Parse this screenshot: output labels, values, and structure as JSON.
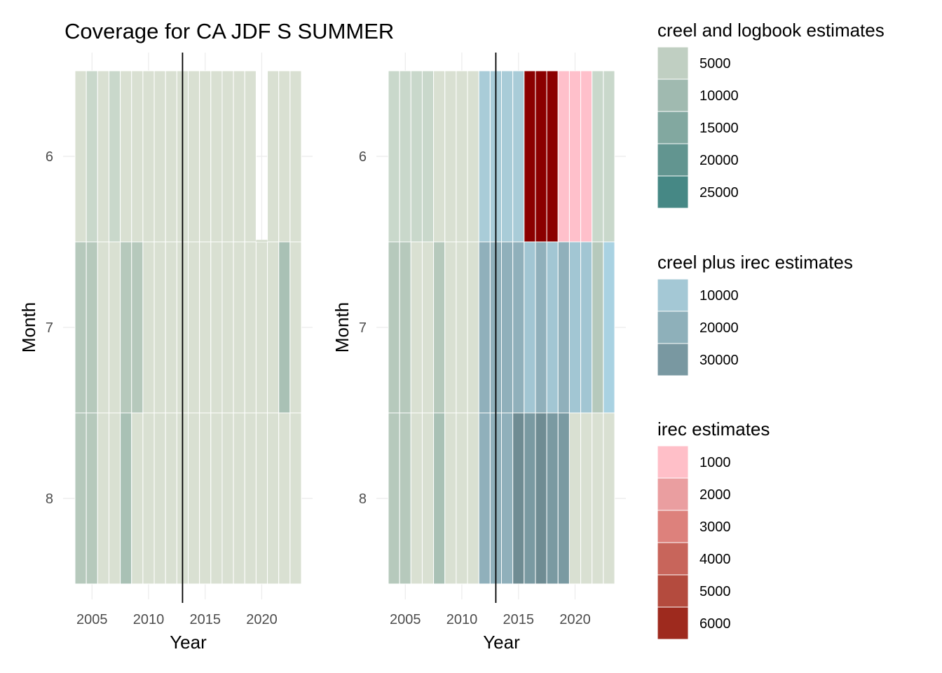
{
  "chart_data": {
    "type": "heatmap",
    "title": "Coverage for CA JDF S SUMMER",
    "vline_year": 2013,
    "months": [
      6,
      7,
      8
    ],
    "x_ticks": [
      2005,
      2010,
      2015,
      2020
    ],
    "xlim": [
      2004.5,
      2023.5
    ],
    "panels": [
      {
        "xlabel": "Year",
        "ylabel": "Month",
        "years": [
          2004,
          2005,
          2006,
          2007,
          2008,
          2009,
          2010,
          2011,
          2012,
          2013,
          2014,
          2015,
          2016,
          2017,
          2018,
          2019,
          2020,
          2021,
          2022,
          2023
        ],
        "cells": {
          "6": [
            "#d9e0d2",
            "#c9d8cb",
            "#d9e0d2",
            "#c9d8cb",
            "#d9e0d2",
            "#d9e0d2",
            "#d9e0d2",
            "#d9e0d2",
            "#d9e0d2",
            "#d9e0d2",
            "#d9e0d2",
            "#d9e0d2",
            "#d9e0d2",
            "#d9e0d2",
            "#d9e0d2",
            "#d9e0d2",
            null,
            "#d9e0d2",
            "#d9e0d2",
            "#d9e0d2"
          ],
          "7": [
            "#b6c9bc",
            "#b6c9bc",
            "#d9e0d2",
            "#d9e0d2",
            "#b6c9bc",
            "#b6c9bc",
            "#d9e0d2",
            "#d9e0d2",
            "#d9e0d2",
            "#d9e0d2",
            "#d9e0d2",
            "#d9e0d2",
            "#d9e0d2",
            "#d9e0d2",
            "#d9e0d2",
            "#d9e0d2",
            "#d9e0d2",
            "#d9e0d2",
            "#a9c1b5",
            "#d9e0d2"
          ],
          "8": [
            "#b6c9bc",
            "#b6c9bc",
            "#d9e0d2",
            "#d9e0d2",
            "#a9c1b5",
            "#d9e0d2",
            "#d9e0d2",
            "#d9e0d2",
            "#d9e0d2",
            "#d9e0d2",
            "#d9e0d2",
            "#d9e0d2",
            "#d9e0d2",
            "#d9e0d2",
            "#d9e0d2",
            "#d9e0d2",
            "#d9e0d2",
            "#d9e0d2",
            "#d9e0d2",
            "#d9e0d2"
          ]
        },
        "partial_2020_month6": true
      },
      {
        "xlabel": "Year",
        "ylabel": "Month",
        "years": [
          2004,
          2005,
          2006,
          2007,
          2008,
          2009,
          2010,
          2011,
          2012,
          2013,
          2014,
          2015,
          2016,
          2017,
          2018,
          2019,
          2020,
          2021,
          2022,
          2023
        ],
        "cells": {
          "6": [
            "#c9d8cb",
            "#c9d8cb",
            "#c9d8cb",
            "#c9d8cb",
            "#d9e0d2",
            "#d9e0d2",
            "#d9e0d2",
            "#d9e0d2",
            "#a9ccd8",
            "#a9ccd8",
            "#a9ccd8",
            "#a9ccd8",
            "#8b0000",
            "#8b0000",
            "#8b0000",
            "#ffc0cb",
            "#ffc0cb",
            "#ffc0cb",
            "#c9d8cb",
            "#c9d8cb"
          ],
          "7": [
            "#b6c9bc",
            "#b6c9bc",
            "#d9e0d2",
            "#d9e0d2",
            "#b6c9bc",
            "#d9e0d2",
            "#d9e0d2",
            "#d9e0d2",
            "#90b0bb",
            "#90b0bb",
            "#90b0bb",
            "#90b0bb",
            "#a2c6d3",
            "#90b0bb",
            "#a2c6d3",
            "#90b0bb",
            "#a2c6d3",
            "#a2c6d3",
            "#b6c9bc",
            "#a9d2e2"
          ],
          "8": [
            "#b6c9bc",
            "#b6c9bc",
            "#d9e0d2",
            "#d9e0d2",
            "#a9c1b5",
            "#d9e0d2",
            "#d9e0d2",
            "#d9e0d2",
            "#90b0bb",
            "#90b0bb",
            "#90b0bb",
            "#6f8c93",
            "#7a9aa2",
            "#6f8c93",
            "#7a9aa2",
            "#7a9aa2",
            "#d9e0d2",
            "#d9e0d2",
            "#d9e0d2",
            "#d9e0d2"
          ]
        }
      }
    ],
    "legends": [
      {
        "title": "creel and logbook estimates",
        "labels": [
          "5000",
          "10000",
          "15000",
          "20000",
          "25000"
        ],
        "colors": [
          "#c0cfc2",
          "#a0bab0",
          "#82a8a0",
          "#629590",
          "#468885"
        ]
      },
      {
        "title": "creel plus irec estimates",
        "labels": [
          "10000",
          "20000",
          "30000"
        ],
        "colors": [
          "#a4c8d5",
          "#8eb0ba",
          "#7998a1"
        ]
      },
      {
        "title": "irec estimates",
        "labels": [
          "1000",
          "2000",
          "3000",
          "4000",
          "5000",
          "6000"
        ],
        "colors": [
          "#ffbfc8",
          "#ea9ea0",
          "#dd817c",
          "#c8655b",
          "#b44b3e",
          "#9e2a1e"
        ]
      }
    ]
  }
}
